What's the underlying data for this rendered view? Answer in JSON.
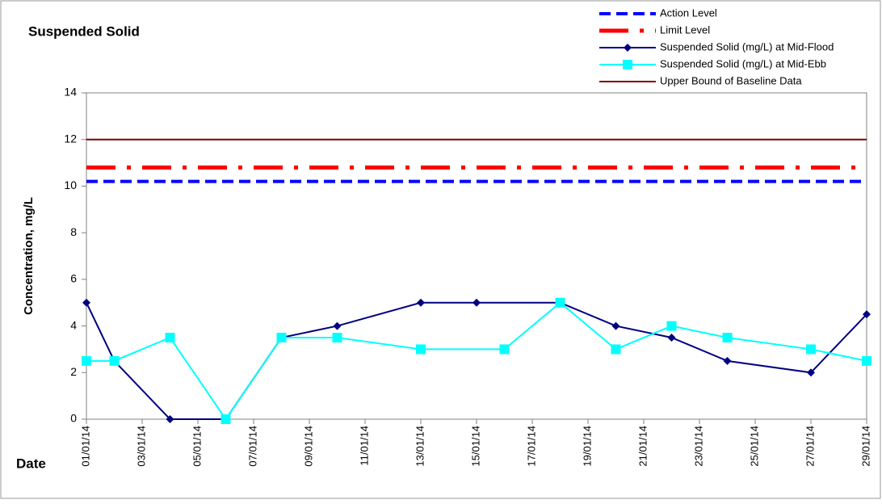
{
  "chart_data": {
    "type": "line",
    "title": "Suspended Solid",
    "ylabel": "Concentration, mg/L",
    "xlabel": "Date",
    "xlim": [
      "01/01/14",
      "29/01/14"
    ],
    "xticks": [
      "01/01/14",
      "03/01/14",
      "05/01/14",
      "07/01/14",
      "09/01/14",
      "11/01/14",
      "13/01/14",
      "15/01/14",
      "17/01/14",
      "19/01/14",
      "21/01/14",
      "23/01/14",
      "25/01/14",
      "27/01/14",
      "29/01/14"
    ],
    "ylim": [
      0,
      14
    ],
    "yticks": [
      0,
      2,
      4,
      6,
      8,
      10,
      12,
      14
    ],
    "series": [
      {
        "name": "Action Level",
        "color": "#0000ff",
        "dash": "dashed",
        "level": 10.2
      },
      {
        "name": "Limit Level",
        "color": "#ff0000",
        "dash": "dash-dot",
        "level": 10.8
      },
      {
        "name": "Suspended Solid (mg/L) at Mid-Flood",
        "color": "#000080",
        "dash": "solid",
        "marker": "diamond",
        "x": [
          "01/01/14",
          "02/01/14",
          "04/01/14",
          "06/01/14",
          "08/01/14",
          "10/01/14",
          "13/01/14",
          "15/01/14",
          "18/01/14",
          "20/01/14",
          "22/01/14",
          "24/01/14",
          "27/01/14",
          "29/01/14"
        ],
        "values": [
          5,
          2.5,
          0,
          0,
          3.5,
          4,
          5,
          5,
          5,
          4,
          3.5,
          2.5,
          2,
          4.5
        ]
      },
      {
        "name": "Suspended Solid (mg/L) at Mid-Ebb",
        "color": "#00ffff",
        "dash": "solid",
        "marker": "square",
        "x": [
          "01/01/14",
          "02/01/14",
          "04/01/14",
          "06/01/14",
          "08/01/14",
          "10/01/14",
          "13/01/14",
          "16/01/14",
          "18/01/14",
          "20/01/14",
          "22/01/14",
          "24/01/14",
          "27/01/14",
          "29/01/14"
        ],
        "values": [
          2.5,
          2.5,
          3.5,
          0,
          3.5,
          3.5,
          3,
          3,
          5,
          3,
          4,
          3.5,
          3,
          2.5
        ]
      },
      {
        "name": "Upper Bound of Baseline Data",
        "color": "#800000",
        "dash": "solid",
        "level": 12
      }
    ]
  }
}
